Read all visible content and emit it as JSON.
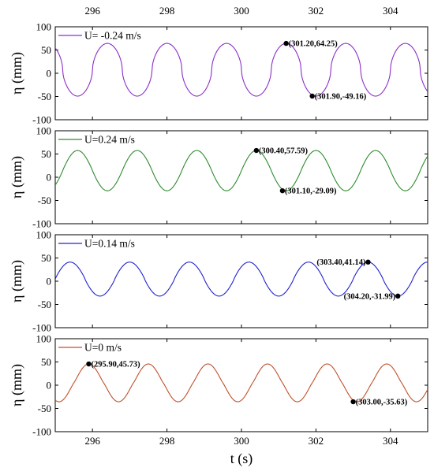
{
  "chart_data": {
    "type": "line",
    "xlabel": "t (s)",
    "xlim": [
      295,
      305
    ],
    "x_ticks": [
      "296",
      "298",
      "300",
      "302",
      "304"
    ],
    "shared_x_ticks_top": true,
    "ylim": [
      -100,
      100
    ],
    "y_ticks": [
      "-100",
      "-50",
      "0",
      "50",
      "100"
    ],
    "grid": false,
    "legend_position": "top-left",
    "panels": [
      {
        "ylabel": "η (mm)",
        "series": [
          {
            "name": "U= -0.24 m/s",
            "color": "#8B2FC9",
            "period": 1.6,
            "peak_time": 301.2,
            "max": 64.25,
            "min": -49.16,
            "peak_shape": 0.55
          }
        ],
        "annotations": [
          {
            "x": 301.2,
            "y": 64.25,
            "label": "(301.20,64.25)",
            "align": "right"
          },
          {
            "x": 301.9,
            "y": -49.16,
            "label": "(301.90,-49.16)",
            "align": "right"
          }
        ]
      },
      {
        "ylabel": "η (mm)",
        "series": [
          {
            "name": "U=0.24 m/s",
            "color": "#2E8B2E",
            "period": 1.6,
            "peak_time": 300.4,
            "max": 57.59,
            "min": -29.09,
            "peak_shape": 0.95
          }
        ],
        "annotations": [
          {
            "x": 300.4,
            "y": 57.59,
            "label": "(300.40,57.59)",
            "align": "right"
          },
          {
            "x": 301.1,
            "y": -29.09,
            "label": "(301.10,-29.09)",
            "align": "right"
          }
        ]
      },
      {
        "ylabel": "η (mm)",
        "series": [
          {
            "name": "U=0.14 m/s",
            "color": "#2020D0",
            "period": 1.6,
            "peak_time": 303.4,
            "max": 41.14,
            "min": -31.99,
            "peak_shape": 0.9
          }
        ],
        "annotations": [
          {
            "x": 303.4,
            "y": 41.14,
            "label": "(303.40,41.14)",
            "align": "left"
          },
          {
            "x": 304.2,
            "y": -31.99,
            "label": "(304.20,-31.99)",
            "align": "left"
          }
        ]
      },
      {
        "ylabel": "η (mm)",
        "series": [
          {
            "name": "U=0 m/s",
            "color": "#C0502A",
            "period": 1.6,
            "peak_time": 295.9,
            "max": 45.73,
            "min": -35.63,
            "peak_shape": 1.1
          }
        ],
        "annotations": [
          {
            "x": 295.9,
            "y": 45.73,
            "label": "(295.90,45.73)",
            "align": "right"
          },
          {
            "x": 303.0,
            "y": -35.63,
            "label": "(303.00,-35.63)",
            "align": "right"
          }
        ]
      }
    ]
  }
}
